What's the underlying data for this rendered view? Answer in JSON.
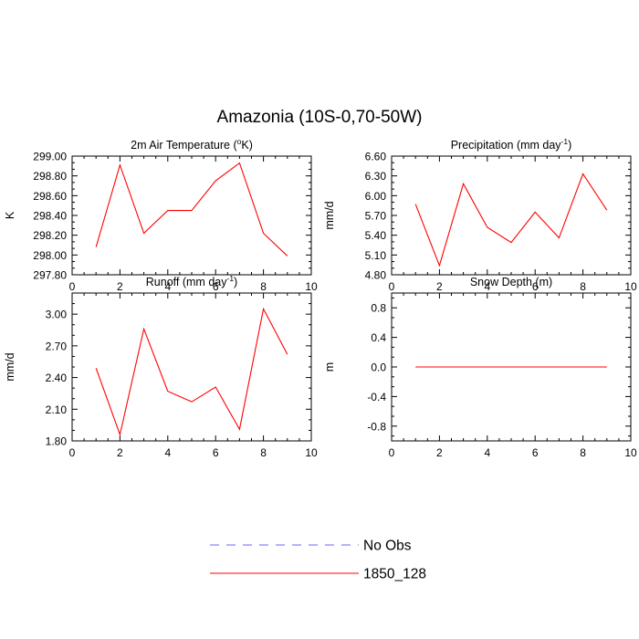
{
  "figure": {
    "title": "Amazonia (10S-0,70-50W)"
  },
  "legend": {
    "entries": [
      {
        "label": "No Obs",
        "color": "#6666ff",
        "style": "dashed"
      },
      {
        "label": "1850_128",
        "color": "#ff0000",
        "style": "solid"
      }
    ]
  },
  "chart_data": [
    {
      "type": "line",
      "title": "2m Air Temperature (",
      "title_sup": "o",
      "title_suffix": "K)",
      "ylabel": "K",
      "xlim": [
        0,
        10
      ],
      "ylim": [
        297.8,
        299.0
      ],
      "xticks": [
        "0",
        "2",
        "4",
        "6",
        "8",
        "10"
      ],
      "yticks": [
        "297.80",
        "298.00",
        "298.20",
        "298.40",
        "298.60",
        "298.80",
        "299.00"
      ],
      "series": [
        {
          "name": "1850_128",
          "color": "#ff0000",
          "x": [
            1,
            2,
            3,
            4,
            5,
            6,
            7,
            8,
            9
          ],
          "values": [
            298.08,
            298.91,
            298.22,
            298.45,
            298.45,
            298.75,
            298.93,
            298.22,
            297.99
          ]
        }
      ]
    },
    {
      "type": "line",
      "title": "Precipitation (mm day",
      "title_sup": "-1",
      "title_suffix": ")",
      "ylabel": "mm/d",
      "xlim": [
        0,
        10
      ],
      "ylim": [
        4.8,
        6.6
      ],
      "xticks": [
        "0",
        "2",
        "4",
        "6",
        "8",
        "10"
      ],
      "yticks": [
        "4.80",
        "5.10",
        "5.40",
        "5.70",
        "6.00",
        "6.30",
        "6.60"
      ],
      "series": [
        {
          "name": "1850_128",
          "color": "#ff0000",
          "x": [
            1,
            2,
            3,
            4,
            5,
            6,
            7,
            8,
            9
          ],
          "values": [
            5.87,
            4.94,
            6.18,
            5.52,
            5.29,
            5.75,
            5.36,
            6.33,
            5.78
          ]
        }
      ]
    },
    {
      "type": "line",
      "title": "Runoff (mm day",
      "title_sup": "-1",
      "title_suffix": ")",
      "ylabel": "mm/d",
      "xlim": [
        0,
        10
      ],
      "ylim": [
        1.8,
        3.2
      ],
      "xticks": [
        "0",
        "2",
        "4",
        "6",
        "8",
        "10"
      ],
      "yticks": [
        "1.80",
        "2.10",
        "2.40",
        "2.70",
        "3.00"
      ],
      "series": [
        {
          "name": "1850_128",
          "color": "#ff0000",
          "x": [
            1,
            2,
            3,
            4,
            5,
            6,
            7,
            8,
            9
          ],
          "values": [
            2.49,
            1.86,
            2.86,
            2.27,
            2.17,
            2.31,
            1.91,
            3.05,
            2.62
          ]
        }
      ]
    },
    {
      "type": "line",
      "title": "Snow Depth (m)",
      "title_sup": "",
      "title_suffix": "",
      "ylabel": "m",
      "xlim": [
        0,
        10
      ],
      "ylim": [
        -1.0,
        1.0
      ],
      "xticks": [
        "0",
        "2",
        "4",
        "6",
        "8",
        "10"
      ],
      "yticks": [
        "-0.8",
        "-0.4",
        "0.0",
        "0.4",
        "0.8"
      ],
      "series": [
        {
          "name": "1850_128",
          "color": "#ff0000",
          "x": [
            1,
            2,
            3,
            4,
            5,
            6,
            7,
            8,
            9
          ],
          "values": [
            0,
            0,
            0,
            0,
            0,
            0,
            0,
            0,
            0
          ]
        }
      ]
    }
  ]
}
